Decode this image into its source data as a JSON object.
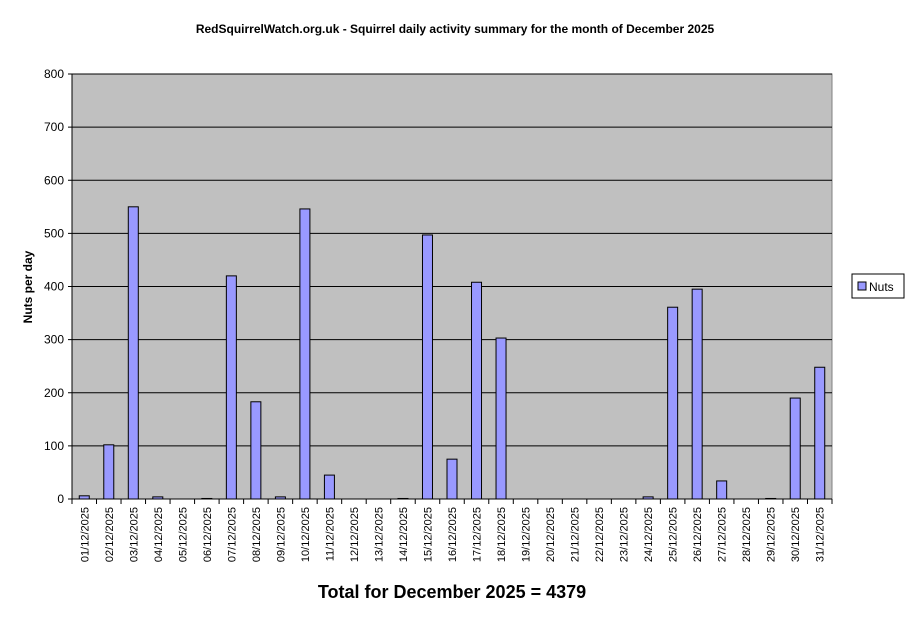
{
  "chart_data": {
    "type": "bar",
    "title": "RedSquirrelWatch.org.uk - Squirrel daily activity summary for the month of December 2025",
    "xlabel": "Total for December 2025 = 4379",
    "ylabel": "Nuts per day",
    "ylim": [
      0,
      800
    ],
    "yticks": [
      0,
      100,
      200,
      300,
      400,
      500,
      600,
      700,
      800
    ],
    "grid": true,
    "legend_position": "right",
    "categories": [
      "01/12/2025",
      "02/12/2025",
      "03/12/2025",
      "04/12/2025",
      "05/12/2025",
      "06/12/2025",
      "07/12/2025",
      "08/12/2025",
      "09/12/2025",
      "10/12/2025",
      "11/12/2025",
      "12/12/2025",
      "13/12/2025",
      "14/12/2025",
      "15/12/2025",
      "16/12/2025",
      "17/12/2025",
      "18/12/2025",
      "19/12/2025",
      "20/12/2025",
      "21/12/2025",
      "22/12/2025",
      "23/12/2025",
      "24/12/2025",
      "25/12/2025",
      "26/12/2025",
      "27/12/2025",
      "28/12/2025",
      "29/12/2025",
      "30/12/2025",
      "31/12/2025"
    ],
    "series": [
      {
        "name": "Nuts",
        "color": "#9999ff",
        "values": [
          6,
          102,
          550,
          4,
          0,
          1,
          420,
          183,
          4,
          546,
          45,
          0,
          0,
          1,
          497,
          75,
          408,
          303,
          0,
          0,
          0,
          0,
          0,
          4,
          361,
          395,
          34,
          0,
          1,
          190,
          248
        ]
      }
    ],
    "colors": {
      "plot_background": "#c0c0c0",
      "bar": "#9999ff",
      "border": "#000000"
    }
  }
}
